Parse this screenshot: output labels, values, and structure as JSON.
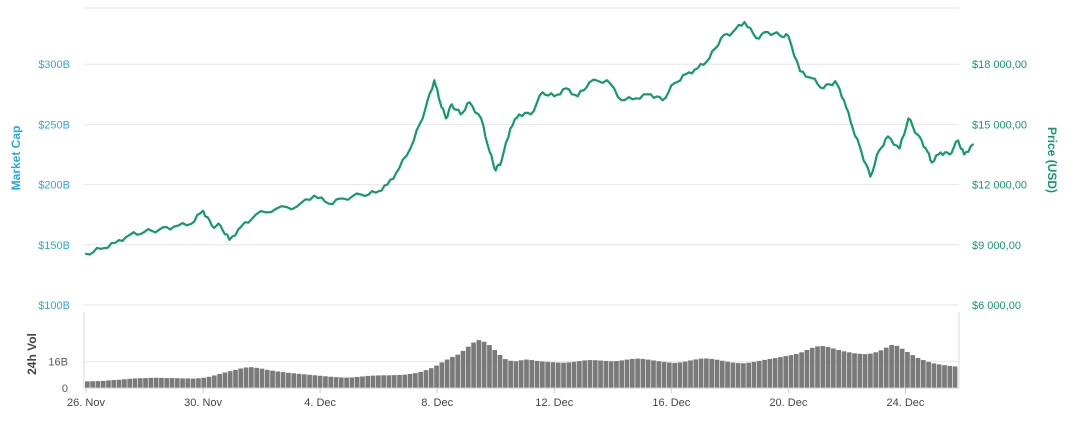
{
  "chart_data": {
    "type": "line",
    "price_axis": {
      "title": "Price (USD)",
      "ticks": [
        "$6 000,00",
        "$9 000,00",
        "$12 000,00",
        "$15 000,00",
        "$18 000,00"
      ],
      "tick_values": [
        6000,
        9000,
        12000,
        15000,
        18000
      ],
      "range": [
        6000,
        20800
      ]
    },
    "market_cap_axis": {
      "title": "Market Cap",
      "ticks": [
        "$100B",
        "$150B",
        "$200B",
        "$250B",
        "$300B"
      ]
    },
    "volume_axis": {
      "title": "24h Vol",
      "ticks": [
        "0",
        "16B"
      ],
      "tick_values": [
        0,
        16
      ],
      "range": [
        0,
        46
      ]
    },
    "x_axis": {
      "ticks": [
        "26. Nov",
        "30. Nov",
        "4. Dec",
        "8. Dec",
        "12. Dec",
        "16. Dec",
        "20. Dec",
        "24. Dec"
      ],
      "tick_days": [
        0,
        4,
        8,
        12,
        16,
        20,
        24,
        28
      ],
      "range_days": [
        0,
        29.3
      ]
    },
    "series": [
      {
        "color": "#129b6c",
        "points": [
          [
            0,
            8550
          ],
          [
            0.5,
            8800
          ],
          [
            1,
            9100
          ],
          [
            1.5,
            9500
          ],
          [
            2,
            9650
          ],
          [
            2.5,
            9750
          ],
          [
            3,
            9900
          ],
          [
            3.6,
            10050
          ],
          [
            4,
            10700
          ],
          [
            4.3,
            9950
          ],
          [
            4.6,
            9950
          ],
          [
            4.9,
            9250
          ],
          [
            5.3,
            9900
          ],
          [
            5.8,
            10500
          ],
          [
            6.5,
            10800
          ],
          [
            7.2,
            10900
          ],
          [
            7.8,
            11450
          ],
          [
            8.3,
            11050
          ],
          [
            8.8,
            11300
          ],
          [
            9.4,
            11500
          ],
          [
            9.9,
            11600
          ],
          [
            10.3,
            12000
          ],
          [
            10.7,
            12800
          ],
          [
            11.2,
            14200
          ],
          [
            11.6,
            15800
          ],
          [
            11.9,
            17200
          ],
          [
            12.1,
            16100
          ],
          [
            12.3,
            15300
          ],
          [
            12.5,
            16000
          ],
          [
            12.8,
            15500
          ],
          [
            13.1,
            16100
          ],
          [
            13.5,
            15300
          ],
          [
            13.8,
            13600
          ],
          [
            14.0,
            12700
          ],
          [
            14.2,
            13200
          ],
          [
            14.5,
            14800
          ],
          [
            14.8,
            15500
          ],
          [
            15.2,
            15500
          ],
          [
            15.6,
            16600
          ],
          [
            16.0,
            16400
          ],
          [
            16.4,
            16800
          ],
          [
            16.8,
            16400
          ],
          [
            17.2,
            17100
          ],
          [
            17.8,
            17200
          ],
          [
            18.3,
            16200
          ],
          [
            18.8,
            16300
          ],
          [
            19.3,
            16500
          ],
          [
            19.7,
            16200
          ],
          [
            20.1,
            17050
          ],
          [
            20.5,
            17500
          ],
          [
            20.9,
            17800
          ],
          [
            21.3,
            18300
          ],
          [
            21.7,
            19300
          ],
          [
            22.1,
            19600
          ],
          [
            22.5,
            20100
          ],
          [
            22.9,
            19300
          ],
          [
            23.3,
            19600
          ],
          [
            23.7,
            19450
          ],
          [
            24.0,
            19400
          ],
          [
            24.4,
            17650
          ],
          [
            24.8,
            17300
          ],
          [
            25.2,
            16800
          ],
          [
            25.6,
            17150
          ],
          [
            25.9,
            16200
          ],
          [
            26.2,
            14800
          ],
          [
            26.5,
            13600
          ],
          [
            26.8,
            12400
          ],
          [
            27.1,
            13700
          ],
          [
            27.4,
            14400
          ],
          [
            27.8,
            13800
          ],
          [
            28.1,
            15300
          ],
          [
            28.4,
            14500
          ],
          [
            28.7,
            13800
          ],
          [
            28.9,
            13100
          ],
          [
            29.2,
            13600
          ],
          [
            29.5,
            13500
          ],
          [
            29.8,
            14200
          ],
          [
            30.0,
            13500
          ],
          [
            30.3,
            14000
          ]
        ]
      }
    ],
    "volume_bars": [
      4,
      4.1,
      4.2,
      4.3,
      4.6,
      4.8,
      5.0,
      5.3,
      5.6,
      5.8,
      5.9,
      6.0,
      6.1,
      6.2,
      6.1,
      6.0,
      6.0,
      5.9,
      5.8,
      5.8,
      5.7,
      5.9,
      6.2,
      6.8,
      7.6,
      8.5,
      9.4,
      10.2,
      11.0,
      11.8,
      12.4,
      12.6,
      12.2,
      11.7,
      11.0,
      10.5,
      10.0,
      9.6,
      9.2,
      8.9,
      8.6,
      8.3,
      8.0,
      7.7,
      7.4,
      7.1,
      6.8,
      6.6,
      6.4,
      6.3,
      6.4,
      6.7,
      7.0,
      7.3,
      7.5,
      7.6,
      7.7,
      7.7,
      7.8,
      7.9,
      8.1,
      8.5,
      9.0,
      9.8,
      10.8,
      12.0,
      13.6,
      15.5,
      17.2,
      18.8,
      20.2,
      22.5,
      25.0,
      27.5,
      29.0,
      28.0,
      26.0,
      23.0,
      20.0,
      17.5,
      16.5,
      16.2,
      16.8,
      17.2,
      16.9,
      16.4,
      16.1,
      15.8,
      15.6,
      15.4,
      15.3,
      15.5,
      15.9,
      16.3,
      16.7,
      16.9,
      16.8,
      16.6,
      16.4,
      16.2,
      16.3,
      16.7,
      17.2,
      17.6,
      17.8,
      17.6,
      17.2,
      16.7,
      16.2,
      15.8,
      15.4,
      15.2,
      15.5,
      16.0,
      16.7,
      17.3,
      17.8,
      17.9,
      17.6,
      17.1,
      16.5,
      15.9,
      15.4,
      15.1,
      15.0,
      15.3,
      15.8,
      16.4,
      17.0,
      17.6,
      18.1,
      18.7,
      19.3,
      19.9,
      20.6,
      21.6,
      23.0,
      24.3,
      25.2,
      25.4,
      24.8,
      23.9,
      23.0,
      22.2,
      21.6,
      21.0,
      20.7,
      20.5,
      20.8,
      21.6,
      22.8,
      24.4,
      26.0,
      25.5,
      23.8,
      21.8,
      19.9,
      18.2,
      16.9,
      15.8,
      14.9,
      14.3,
      13.8,
      13.4,
      13.1
    ]
  }
}
